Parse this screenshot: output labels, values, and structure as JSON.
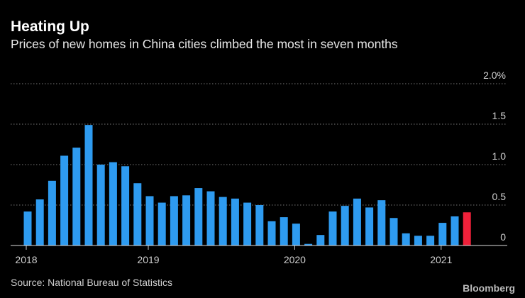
{
  "chart_data": {
    "type": "bar",
    "title": "Heating Up",
    "subtitle": "Prices of new homes in China cities climbed the most in seven months",
    "source": "Source: National Bureau of Statistics",
    "brand": "Bloomberg",
    "categories": [
      "2018",
      null,
      null,
      null,
      null,
      null,
      null,
      null,
      null,
      null,
      "2019",
      null,
      null,
      null,
      null,
      null,
      null,
      null,
      null,
      null,
      null,
      null,
      "2020",
      null,
      null,
      null,
      null,
      null,
      null,
      null,
      null,
      null,
      null,
      null,
      "2021",
      null,
      null
    ],
    "values": [
      0.42,
      0.57,
      0.8,
      1.11,
      1.21,
      1.49,
      1.0,
      1.03,
      0.98,
      0.77,
      0.61,
      0.53,
      0.61,
      0.62,
      0.71,
      0.67,
      0.6,
      0.58,
      0.53,
      0.5,
      0.3,
      0.35,
      0.27,
      0.02,
      0.13,
      0.42,
      0.49,
      0.58,
      0.47,
      0.56,
      0.34,
      0.15,
      0.12,
      0.12,
      0.28,
      0.36,
      0.41
    ],
    "colors": [
      "#2e9bf0",
      "#2e9bf0",
      "#2e9bf0",
      "#2e9bf0",
      "#2e9bf0",
      "#2e9bf0",
      "#2e9bf0",
      "#2e9bf0",
      "#2e9bf0",
      "#2e9bf0",
      "#2e9bf0",
      "#2e9bf0",
      "#2e9bf0",
      "#2e9bf0",
      "#2e9bf0",
      "#2e9bf0",
      "#2e9bf0",
      "#2e9bf0",
      "#2e9bf0",
      "#2e9bf0",
      "#2e9bf0",
      "#2e9bf0",
      "#2e9bf0",
      "#2e9bf0",
      "#2e9bf0",
      "#2e9bf0",
      "#2e9bf0",
      "#2e9bf0",
      "#2e9bf0",
      "#2e9bf0",
      "#2e9bf0",
      "#2e9bf0",
      "#2e9bf0",
      "#2e9bf0",
      "#2e9bf0",
      "#2e9bf0",
      "#f0213a"
    ],
    "ylim": [
      0,
      2
    ],
    "yticks": [
      {
        "value": 0,
        "label": "0"
      },
      0.5,
      {
        "value": 1,
        "label": "1.0"
      },
      1.5,
      {
        "value": 2,
        "label": "2.0%"
      }
    ],
    "grid": true
  }
}
